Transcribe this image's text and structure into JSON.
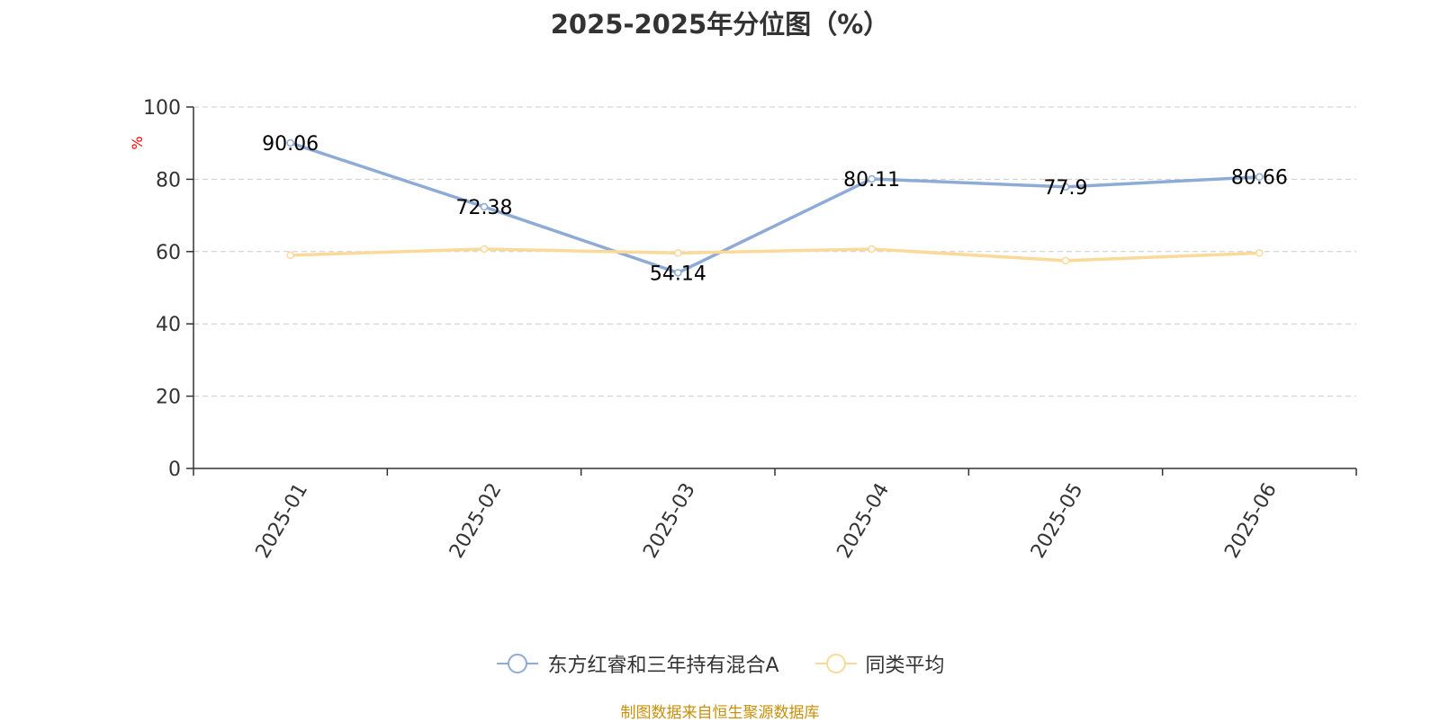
{
  "chart_data": {
    "type": "line",
    "title": "2025-2025年分位图（%）",
    "ylabel": "%",
    "ylim": [
      0,
      100
    ],
    "yticks": [
      0,
      20,
      40,
      60,
      80,
      100
    ],
    "categories": [
      "2025-01",
      "2025-02",
      "2025-03",
      "2025-04",
      "2025-05",
      "2025-06"
    ],
    "series": [
      {
        "name": "东方红睿和三年持有混合A",
        "color": "#8eabd6",
        "values": [
          90.06,
          72.38,
          54.14,
          80.11,
          77.9,
          80.66
        ],
        "labels": [
          "90.06",
          "72.38",
          "54.14",
          "80.11",
          "77.9",
          "80.66"
        ]
      },
      {
        "name": "同类平均",
        "color": "#fbd99b",
        "values": [
          59.0,
          60.7,
          59.6,
          60.7,
          57.5,
          59.6
        ]
      }
    ],
    "grid": "horizontal-dashed",
    "legend_position": "bottom"
  },
  "source_text": "制图数据来自恒生聚源数据库",
  "colors": {
    "title": "#333333",
    "axis": "#333333",
    "grid": "#cccccc",
    "ylabel": "#ff0000",
    "source": "#c8900a"
  }
}
